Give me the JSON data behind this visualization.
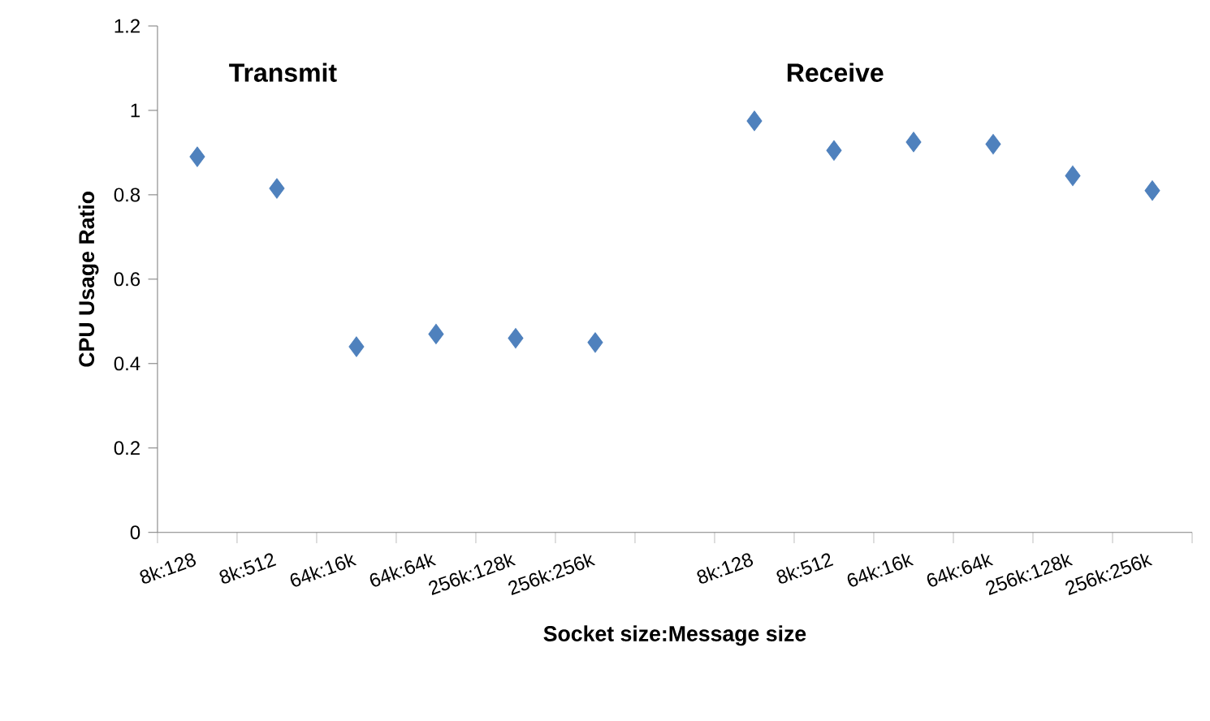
{
  "chart_data": {
    "type": "scatter",
    "categories": [
      "8k:128",
      "8k:512",
      "64k:16k",
      "64k:64k",
      "256k:128k",
      "256k:256k",
      null,
      "8k:128",
      "8k:512",
      "64k:16k",
      "64k:64k",
      "256k:128k",
      "256k:256k"
    ],
    "values": [
      0.89,
      0.815,
      0.44,
      0.47,
      0.46,
      0.45,
      null,
      0.975,
      0.905,
      0.925,
      0.92,
      0.845,
      0.81
    ],
    "color": "#4f81bd",
    "marker": "diamond",
    "ylim": [
      0,
      1.2
    ],
    "yticks": [
      0,
      0.2,
      0.4,
      0.6,
      0.8,
      1,
      1.2
    ],
    "xlabel": "Socket size:Message size",
    "ylabel": "CPU Usage Ratio",
    "annotations": [
      "Transmit",
      "Receive"
    ],
    "grid": false
  }
}
